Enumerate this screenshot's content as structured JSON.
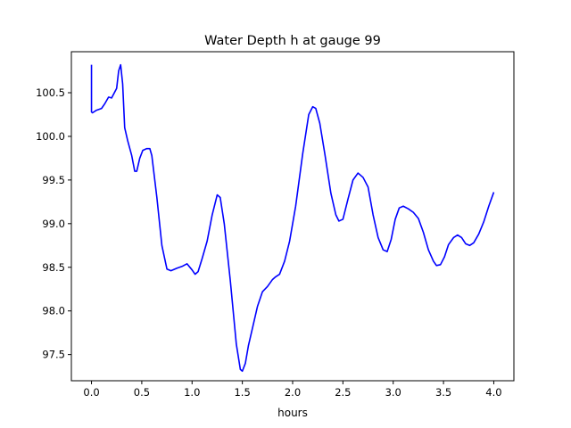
{
  "chart_data": {
    "type": "line",
    "title": "Water Depth h at gauge 99",
    "xlabel": "hours",
    "ylabel": "",
    "xlim": [
      -0.2,
      4.2
    ],
    "ylim": [
      97.2,
      100.97
    ],
    "xticks": [
      0.0,
      0.5,
      1.0,
      1.5,
      2.0,
      2.5,
      3.0,
      3.5,
      4.0
    ],
    "xtick_labels": [
      "0.0",
      "0.5",
      "1.0",
      "1.5",
      "2.0",
      "2.5",
      "3.0",
      "3.5",
      "4.0"
    ],
    "yticks": [
      97.5,
      98.0,
      98.5,
      99.0,
      99.5,
      100.0,
      100.5
    ],
    "ytick_labels": [
      "97.5",
      "98.0",
      "98.5",
      "99.0",
      "99.5",
      "100.0",
      "100.5"
    ],
    "grid": false,
    "legend": "none",
    "series": [
      {
        "color": "#0000ff",
        "x": [
          0.0,
          0.0,
          0.01,
          0.05,
          0.1,
          0.13,
          0.17,
          0.2,
          0.25,
          0.27,
          0.29,
          0.31,
          0.33,
          0.36,
          0.4,
          0.43,
          0.45,
          0.48,
          0.51,
          0.55,
          0.58,
          0.6,
          0.65,
          0.7,
          0.75,
          0.79,
          0.85,
          0.9,
          0.95,
          1.0,
          1.03,
          1.06,
          1.1,
          1.15,
          1.2,
          1.25,
          1.28,
          1.32,
          1.38,
          1.44,
          1.48,
          1.5,
          1.53,
          1.56,
          1.6,
          1.65,
          1.7,
          1.75,
          1.8,
          1.83,
          1.87,
          1.92,
          1.97,
          2.03,
          2.1,
          2.16,
          2.2,
          2.23,
          2.27,
          2.32,
          2.38,
          2.43,
          2.46,
          2.5,
          2.55,
          2.6,
          2.65,
          2.7,
          2.75,
          2.8,
          2.85,
          2.9,
          2.94,
          2.98,
          3.02,
          3.06,
          3.1,
          3.15,
          3.2,
          3.25,
          3.3,
          3.35,
          3.4,
          3.43,
          3.47,
          3.51,
          3.55,
          3.6,
          3.64,
          3.68,
          3.72,
          3.76,
          3.8,
          3.85,
          3.9,
          3.95,
          4.0
        ],
        "values": [
          100.82,
          100.28,
          100.27,
          100.3,
          100.32,
          100.37,
          100.45,
          100.44,
          100.55,
          100.75,
          100.82,
          100.6,
          100.1,
          99.95,
          99.78,
          99.6,
          99.6,
          99.75,
          99.84,
          99.86,
          99.86,
          99.78,
          99.3,
          98.75,
          98.48,
          98.46,
          98.49,
          98.51,
          98.54,
          98.47,
          98.42,
          98.45,
          98.6,
          98.8,
          99.1,
          99.33,
          99.3,
          99.0,
          98.35,
          97.62,
          97.33,
          97.31,
          97.4,
          97.6,
          97.8,
          98.05,
          98.22,
          98.28,
          98.36,
          98.39,
          98.42,
          98.57,
          98.8,
          99.2,
          99.8,
          100.25,
          100.34,
          100.32,
          100.15,
          99.8,
          99.35,
          99.1,
          99.03,
          99.05,
          99.28,
          99.5,
          99.58,
          99.53,
          99.42,
          99.1,
          98.84,
          98.7,
          98.68,
          98.82,
          99.05,
          99.18,
          99.2,
          99.17,
          99.13,
          99.06,
          98.9,
          98.7,
          98.57,
          98.52,
          98.53,
          98.62,
          98.76,
          98.84,
          98.87,
          98.84,
          98.77,
          98.75,
          98.78,
          98.88,
          99.02,
          99.2,
          99.36
        ]
      }
    ]
  }
}
